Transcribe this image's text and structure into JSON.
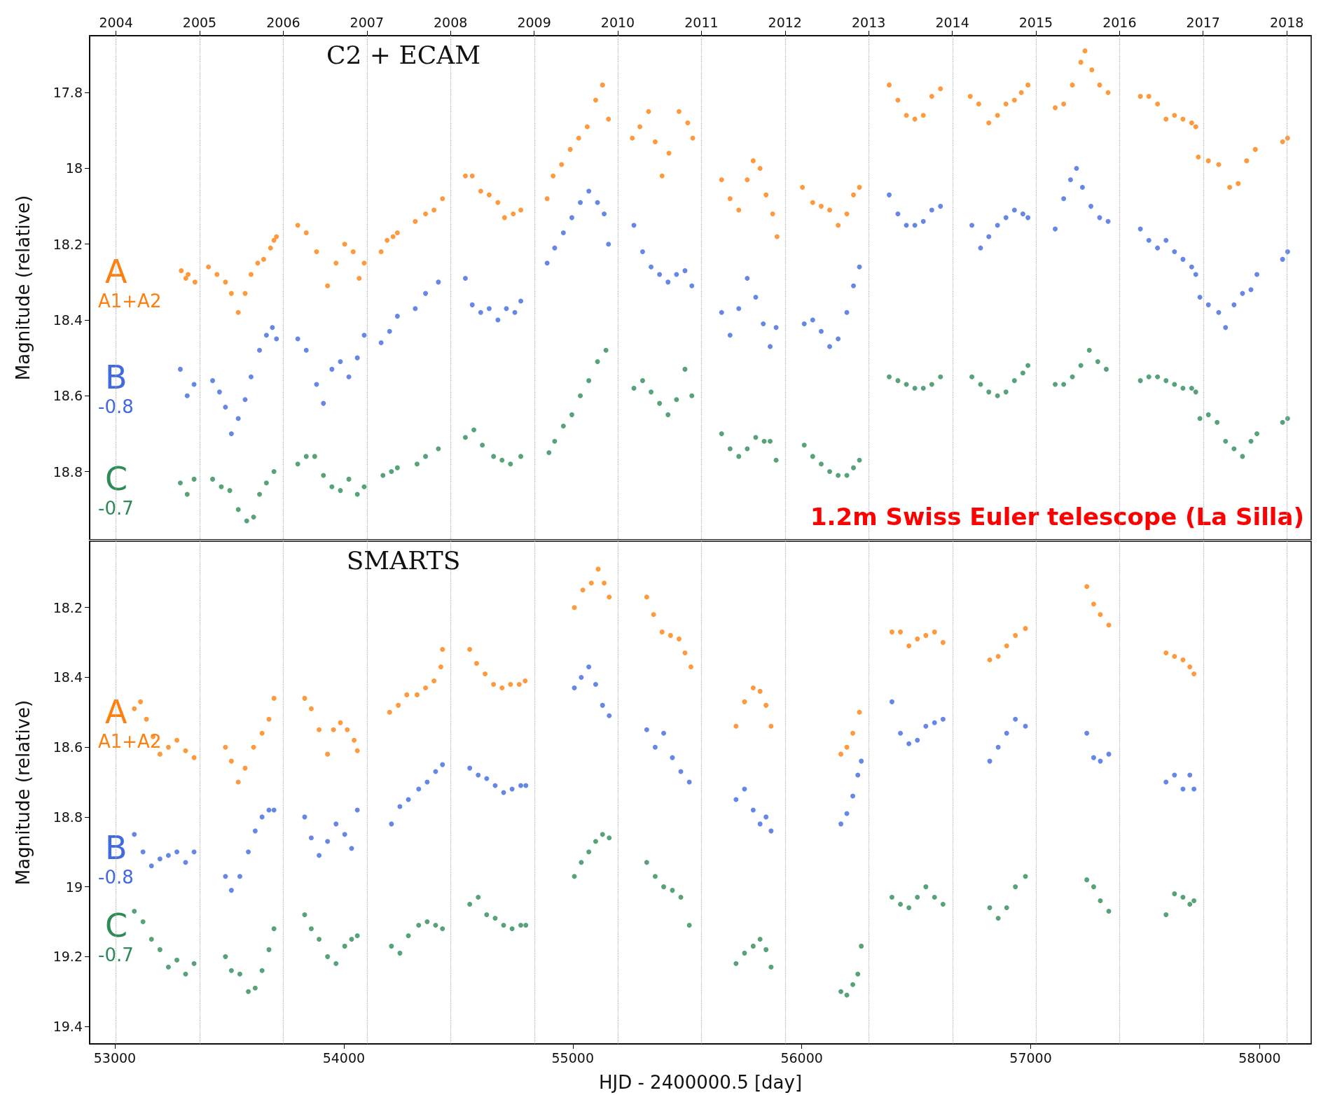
{
  "chart_data": [
    {
      "type": "scatter",
      "title": "C2 + ECAM",
      "ylabel": "Magnitude (relative)",
      "marker": "circle",
      "annotations": [
        "A1+A2",
        "-0.8",
        "-0.7",
        "1.2m Swiss Euler telescope (La Silla)"
      ],
      "xlim": [
        52890,
        58225
      ],
      "ylim": [
        18.98,
        17.65
      ],
      "yticks": [
        17.8,
        18.0,
        18.2,
        18.4,
        18.6,
        18.8
      ],
      "x2lim": [
        2003.685,
        2018.292
      ],
      "x2ticks": [
        2004,
        2005,
        2006,
        2007,
        2008,
        2009,
        2010,
        2011,
        2012,
        2013,
        2014,
        2015,
        2016,
        2017,
        2018
      ],
      "ref_lines": [
        {
          "axis": "x",
          "value": 53005,
          "color": "#b0b0b0",
          "line_style": "dotted"
        },
        {
          "axis": "x",
          "value": 53371,
          "color": "#b0b0b0",
          "line_style": "dotted"
        },
        {
          "axis": "x",
          "value": 53736,
          "color": "#b0b0b0",
          "line_style": "dotted"
        },
        {
          "axis": "x",
          "value": 54101,
          "color": "#b0b0b0",
          "line_style": "dotted"
        },
        {
          "axis": "x",
          "value": 54466,
          "color": "#b0b0b0",
          "line_style": "dotted"
        },
        {
          "axis": "x",
          "value": 54832,
          "color": "#b0b0b0",
          "line_style": "dotted"
        },
        {
          "axis": "x",
          "value": 55197,
          "color": "#b0b0b0",
          "line_style": "dotted"
        },
        {
          "axis": "x",
          "value": 55562,
          "color": "#b0b0b0",
          "line_style": "dotted"
        },
        {
          "axis": "x",
          "value": 55927,
          "color": "#b0b0b0",
          "line_style": "dotted"
        },
        {
          "axis": "x",
          "value": 56293,
          "color": "#b0b0b0",
          "line_style": "dotted"
        },
        {
          "axis": "x",
          "value": 56658,
          "color": "#b0b0b0",
          "line_style": "dotted"
        },
        {
          "axis": "x",
          "value": 57023,
          "color": "#b0b0b0",
          "line_style": "dotted"
        },
        {
          "axis": "x",
          "value": 57388,
          "color": "#b0b0b0",
          "line_style": "dotted"
        },
        {
          "axis": "x",
          "value": 57754,
          "color": "#b0b0b0",
          "line_style": "dotted"
        },
        {
          "axis": "x",
          "value": 58119,
          "color": "#b0b0b0",
          "line_style": "dotted"
        }
      ],
      "series": [
        {
          "name": "A",
          "color": "#ff7f0e",
          "x": [
            53290,
            53310,
            53320,
            53350,
            53409,
            53446,
            53483,
            53509,
            53539,
            53569,
            53595,
            53624,
            53650,
            53680,
            53695,
            53706,
            53799,
            53836,
            53881,
            53929,
            53966,
            54004,
            54041,
            54067,
            54089,
            54163,
            54189,
            54215,
            54234,
            54312,
            54357,
            54394,
            54431,
            54531,
            54561,
            54598,
            54635,
            54673,
            54702,
            54740,
            54773,
            54888,
            54914,
            54951,
            54989,
            55026,
            55063,
            55100,
            55130,
            55156,
            55260,
            55293,
            55331,
            55360,
            55390,
            55420,
            55464,
            55502,
            55524,
            55650,
            55687,
            55725,
            55762,
            55788,
            55818,
            55844,
            55873,
            55892,
            56003,
            56048,
            56085,
            56122,
            56159,
            56197,
            56226,
            56252,
            56382,
            56420,
            56457,
            56494,
            56531,
            56568,
            56606,
            56736,
            56773,
            56817,
            56855,
            56892,
            56929,
            56959,
            56988,
            57107,
            57144,
            57182,
            57219,
            57237,
            57267,
            57301,
            57338,
            57479,
            57516,
            57554,
            57591,
            57628,
            57665,
            57703,
            57721,
            57732,
            57776,
            57821,
            57869,
            57906,
            57943,
            57981,
            58100,
            58122
          ],
          "values": [
            18.27,
            18.29,
            18.28,
            18.3,
            18.26,
            18.28,
            18.3,
            18.33,
            18.38,
            18.33,
            18.28,
            18.25,
            18.24,
            18.21,
            18.19,
            18.18,
            18.15,
            18.17,
            18.22,
            18.31,
            18.25,
            18.2,
            18.22,
            18.29,
            18.25,
            18.22,
            18.19,
            18.18,
            18.17,
            18.14,
            18.12,
            18.11,
            18.08,
            18.02,
            18.02,
            18.06,
            18.07,
            18.09,
            18.13,
            18.12,
            18.11,
            18.08,
            18.02,
            17.99,
            17.95,
            17.92,
            17.89,
            17.82,
            17.78,
            17.87,
            17.92,
            17.89,
            17.85,
            17.93,
            18.02,
            17.96,
            17.85,
            17.88,
            17.92,
            18.03,
            18.08,
            18.11,
            18.03,
            17.98,
            18.0,
            18.07,
            18.12,
            18.18,
            18.05,
            18.09,
            18.1,
            18.11,
            18.15,
            18.12,
            18.07,
            18.05,
            17.78,
            17.82,
            17.86,
            17.87,
            17.86,
            17.81,
            17.79,
            17.81,
            17.83,
            17.88,
            17.86,
            17.83,
            17.82,
            17.8,
            17.78,
            17.84,
            17.83,
            17.78,
            17.72,
            17.69,
            17.74,
            17.78,
            17.8,
            17.81,
            17.81,
            17.83,
            17.87,
            17.86,
            17.87,
            17.88,
            17.89,
            17.97,
            17.98,
            17.99,
            18.05,
            18.04,
            17.98,
            17.95,
            17.93,
            17.92
          ]
        },
        {
          "name": "B",
          "color": "#4169e1",
          "x": [
            53286,
            53316,
            53346,
            53427,
            53457,
            53483,
            53509,
            53539,
            53569,
            53595,
            53632,
            53662,
            53688,
            53706,
            53799,
            53836,
            53881,
            53911,
            53948,
            53985,
            54022,
            54059,
            54089,
            54163,
            54200,
            54234,
            54312,
            54357,
            54413,
            54531,
            54561,
            54598,
            54635,
            54673,
            54710,
            54747,
            54773,
            54888,
            54921,
            54959,
            54996,
            55033,
            55070,
            55108,
            55137,
            55156,
            55267,
            55305,
            55342,
            55379,
            55416,
            55453,
            55490,
            55520,
            55650,
            55687,
            55725,
            55762,
            55799,
            55832,
            55862,
            55888,
            56011,
            56048,
            56085,
            56122,
            56159,
            56197,
            56226,
            56252,
            56382,
            56420,
            56457,
            56494,
            56531,
            56568,
            56606,
            56743,
            56781,
            56817,
            56855,
            56892,
            56929,
            56966,
            56988,
            57107,
            57144,
            57174,
            57200,
            57226,
            57263,
            57301,
            57338,
            57479,
            57516,
            57554,
            57591,
            57628,
            57665,
            57703,
            57721,
            57739,
            57776,
            57821,
            57851,
            57888,
            57925,
            57962,
            57988,
            58100,
            58122
          ],
          "values": [
            18.53,
            18.6,
            18.57,
            18.56,
            18.59,
            18.63,
            18.7,
            18.66,
            18.61,
            18.55,
            18.48,
            18.44,
            18.42,
            18.45,
            18.45,
            18.48,
            18.57,
            18.62,
            18.53,
            18.51,
            18.55,
            18.5,
            18.44,
            18.46,
            18.43,
            18.39,
            18.37,
            18.33,
            18.3,
            18.29,
            18.36,
            18.38,
            18.37,
            18.4,
            18.37,
            18.38,
            18.35,
            18.25,
            18.21,
            18.17,
            18.13,
            18.09,
            18.06,
            18.09,
            18.12,
            18.2,
            18.15,
            18.22,
            18.26,
            18.28,
            18.3,
            18.28,
            18.27,
            18.31,
            18.38,
            18.44,
            18.37,
            18.29,
            18.34,
            18.41,
            18.47,
            18.42,
            18.41,
            18.4,
            18.43,
            18.47,
            18.45,
            18.38,
            18.31,
            18.26,
            18.07,
            18.12,
            18.15,
            18.15,
            18.14,
            18.11,
            18.1,
            18.15,
            18.21,
            18.18,
            18.15,
            18.13,
            18.11,
            18.12,
            18.13,
            18.16,
            18.08,
            18.03,
            18.0,
            18.05,
            18.1,
            18.13,
            18.14,
            18.16,
            18.19,
            18.21,
            18.19,
            18.22,
            18.24,
            18.26,
            18.28,
            18.34,
            18.36,
            18.38,
            18.42,
            18.36,
            18.33,
            18.32,
            18.28,
            18.24,
            18.22
          ]
        },
        {
          "name": "C",
          "color": "#2e8b57",
          "x": [
            53286,
            53316,
            53346,
            53427,
            53465,
            53502,
            53539,
            53576,
            53606,
            53632,
            53662,
            53695,
            53799,
            53836,
            53873,
            53911,
            53948,
            53985,
            54022,
            54059,
            54089,
            54171,
            54208,
            54234,
            54320,
            54357,
            54413,
            54531,
            54568,
            54605,
            54654,
            54691,
            54728,
            54773,
            54896,
            54921,
            54959,
            54996,
            55033,
            55070,
            55108,
            55145,
            55267,
            55305,
            55342,
            55379,
            55416,
            55453,
            55490,
            55520,
            55650,
            55687,
            55725,
            55762,
            55799,
            55836,
            55862,
            55888,
            56011,
            56048,
            56085,
            56122,
            56159,
            56197,
            56226,
            56252,
            56382,
            56420,
            56457,
            56494,
            56531,
            56568,
            56606,
            56743,
            56781,
            56817,
            56855,
            56892,
            56929,
            56966,
            56988,
            57107,
            57144,
            57182,
            57219,
            57256,
            57293,
            57330,
            57479,
            57516,
            57554,
            57591,
            57628,
            57665,
            57703,
            57721,
            57739,
            57776,
            57814,
            57851,
            57888,
            57925,
            57962,
            57988,
            58100,
            58122
          ],
          "values": [
            18.83,
            18.86,
            18.82,
            18.82,
            18.84,
            18.85,
            18.9,
            18.93,
            18.92,
            18.86,
            18.83,
            18.8,
            18.78,
            18.76,
            18.76,
            18.81,
            18.84,
            18.85,
            18.82,
            18.86,
            18.84,
            18.81,
            18.8,
            18.79,
            18.78,
            18.76,
            18.74,
            18.71,
            18.69,
            18.73,
            18.76,
            18.77,
            18.78,
            18.76,
            18.75,
            18.72,
            18.68,
            18.65,
            18.6,
            18.56,
            18.51,
            18.48,
            18.58,
            18.56,
            18.59,
            18.62,
            18.65,
            18.61,
            18.53,
            18.6,
            18.7,
            18.74,
            18.76,
            18.74,
            18.71,
            18.72,
            18.72,
            18.77,
            18.73,
            18.76,
            18.78,
            18.8,
            18.81,
            18.81,
            18.79,
            18.77,
            18.55,
            18.56,
            18.57,
            18.58,
            18.58,
            18.57,
            18.55,
            18.55,
            18.57,
            18.59,
            18.6,
            18.59,
            18.56,
            18.54,
            18.52,
            18.57,
            18.57,
            18.55,
            18.52,
            18.48,
            18.51,
            18.53,
            18.56,
            18.55,
            18.55,
            18.56,
            18.57,
            18.58,
            18.58,
            18.59,
            18.66,
            18.65,
            18.67,
            18.72,
            18.74,
            18.76,
            18.72,
            18.7,
            18.67,
            18.66
          ]
        }
      ]
    },
    {
      "type": "scatter",
      "title": "SMARTS",
      "xlabel": "HJD - 2400000.5 [day]",
      "ylabel": "Magnitude (relative)",
      "marker": "circle",
      "annotations": [
        "A1+A2",
        "-0.8",
        "-0.7"
      ],
      "xlim": [
        52890,
        58225
      ],
      "xticks": [
        53000,
        54000,
        55000,
        56000,
        57000,
        58000
      ],
      "ylim": [
        19.45,
        18.01
      ],
      "yticks": [
        18.2,
        18.4,
        18.6,
        18.8,
        19.0,
        19.2,
        19.4
      ],
      "ref_lines": [
        {
          "axis": "x",
          "value": 53005,
          "color": "#b0b0b0",
          "line_style": "dotted"
        },
        {
          "axis": "x",
          "value": 53371,
          "color": "#b0b0b0",
          "line_style": "dotted"
        },
        {
          "axis": "x",
          "value": 53736,
          "color": "#b0b0b0",
          "line_style": "dotted"
        },
        {
          "axis": "x",
          "value": 54101,
          "color": "#b0b0b0",
          "line_style": "dotted"
        },
        {
          "axis": "x",
          "value": 54466,
          "color": "#b0b0b0",
          "line_style": "dotted"
        },
        {
          "axis": "x",
          "value": 54832,
          "color": "#b0b0b0",
          "line_style": "dotted"
        },
        {
          "axis": "x",
          "value": 55197,
          "color": "#b0b0b0",
          "line_style": "dotted"
        },
        {
          "axis": "x",
          "value": 55562,
          "color": "#b0b0b0",
          "line_style": "dotted"
        },
        {
          "axis": "x",
          "value": 55927,
          "color": "#b0b0b0",
          "line_style": "dotted"
        },
        {
          "axis": "x",
          "value": 56293,
          "color": "#b0b0b0",
          "line_style": "dotted"
        },
        {
          "axis": "x",
          "value": 56658,
          "color": "#b0b0b0",
          "line_style": "dotted"
        },
        {
          "axis": "x",
          "value": 57023,
          "color": "#b0b0b0",
          "line_style": "dotted"
        },
        {
          "axis": "x",
          "value": 57388,
          "color": "#b0b0b0",
          "line_style": "dotted"
        },
        {
          "axis": "x",
          "value": 57754,
          "color": "#b0b0b0",
          "line_style": "dotted"
        },
        {
          "axis": "x",
          "value": 58119,
          "color": "#b0b0b0",
          "line_style": "dotted"
        }
      ],
      "series": [
        {
          "name": "A",
          "color": "#ff7f0e",
          "x": [
            53085,
            53112,
            53138,
            53167,
            53197,
            53234,
            53271,
            53309,
            53346,
            53483,
            53509,
            53539,
            53569,
            53606,
            53643,
            53673,
            53695,
            53829,
            53858,
            53892,
            53929,
            53955,
            53985,
            54015,
            54045,
            54059,
            54200,
            54238,
            54275,
            54320,
            54357,
            54394,
            54424,
            54431,
            54550,
            54580,
            54617,
            54654,
            54691,
            54728,
            54766,
            54792,
            55007,
            55044,
            55081,
            55111,
            55137,
            55159,
            55323,
            55353,
            55390,
            55427,
            55464,
            55490,
            55516,
            55713,
            55750,
            55788,
            55818,
            55844,
            55866,
            56171,
            56197,
            56223,
            56252,
            56394,
            56431,
            56468,
            56505,
            56542,
            56580,
            56617,
            56821,
            56858,
            56895,
            56933,
            56977,
            57245,
            57275,
            57304,
            57341,
            57591,
            57628,
            57665,
            57695,
            57713
          ],
          "values": [
            18.49,
            18.47,
            18.52,
            18.57,
            18.62,
            18.6,
            18.58,
            18.61,
            18.63,
            18.6,
            18.64,
            18.7,
            18.66,
            18.6,
            18.56,
            18.52,
            18.46,
            18.46,
            18.49,
            18.55,
            18.62,
            18.55,
            18.53,
            18.55,
            18.58,
            18.61,
            18.5,
            18.48,
            18.45,
            18.45,
            18.43,
            18.41,
            18.37,
            18.32,
            18.32,
            18.36,
            18.39,
            18.42,
            18.43,
            18.42,
            18.42,
            18.41,
            18.2,
            18.15,
            18.13,
            18.09,
            18.13,
            18.17,
            18.17,
            18.22,
            18.27,
            18.28,
            18.29,
            18.33,
            18.37,
            18.54,
            18.47,
            18.43,
            18.44,
            18.48,
            18.54,
            18.62,
            18.6,
            18.56,
            18.5,
            18.27,
            18.27,
            18.31,
            18.29,
            18.28,
            18.27,
            18.3,
            18.35,
            18.34,
            18.31,
            18.28,
            18.26,
            18.14,
            18.19,
            18.22,
            18.25,
            18.33,
            18.34,
            18.35,
            18.37,
            18.39
          ]
        },
        {
          "name": "B",
          "color": "#4169e1",
          "x": [
            53085,
            53123,
            53160,
            53197,
            53234,
            53271,
            53309,
            53346,
            53483,
            53509,
            53546,
            53583,
            53613,
            53643,
            53673,
            53695,
            53829,
            53858,
            53892,
            53929,
            53966,
            54004,
            54034,
            54059,
            54208,
            54245,
            54282,
            54327,
            54364,
            54401,
            54431,
            54550,
            54587,
            54624,
            54661,
            54698,
            54735,
            54773,
            54795,
            55007,
            55037,
            55070,
            55100,
            55130,
            55159,
            55323,
            55360,
            55397,
            55435,
            55472,
            55509,
            55713,
            55750,
            55788,
            55818,
            55844,
            55866,
            56171,
            56197,
            56223,
            56245,
            56260,
            56394,
            56431,
            56468,
            56505,
            56542,
            56580,
            56617,
            56821,
            56858,
            56895,
            56933,
            56977,
            57245,
            57275,
            57304,
            57341,
            57591,
            57628,
            57665,
            57695,
            57713
          ],
          "values": [
            18.85,
            18.9,
            18.94,
            18.92,
            18.91,
            18.9,
            18.93,
            18.9,
            18.97,
            19.01,
            18.97,
            18.9,
            18.84,
            18.8,
            18.78,
            18.78,
            18.8,
            18.86,
            18.91,
            18.87,
            18.82,
            18.85,
            18.89,
            18.78,
            18.82,
            18.77,
            18.75,
            18.72,
            18.7,
            18.67,
            18.65,
            18.66,
            18.68,
            18.69,
            18.71,
            18.73,
            18.72,
            18.71,
            18.71,
            18.43,
            18.4,
            18.37,
            18.42,
            18.48,
            18.51,
            18.55,
            18.6,
            18.56,
            18.63,
            18.67,
            18.7,
            18.75,
            18.72,
            18.78,
            18.82,
            18.8,
            18.84,
            18.82,
            18.79,
            18.74,
            18.68,
            18.64,
            18.47,
            18.56,
            18.59,
            18.58,
            18.54,
            18.53,
            18.52,
            18.64,
            18.6,
            18.56,
            18.52,
            18.54,
            18.56,
            18.63,
            18.64,
            18.62,
            18.7,
            18.68,
            18.72,
            18.68,
            18.72
          ]
        },
        {
          "name": "C",
          "color": "#2e8b57",
          "x": [
            53085,
            53123,
            53160,
            53197,
            53234,
            53271,
            53309,
            53346,
            53483,
            53509,
            53546,
            53583,
            53613,
            53643,
            53673,
            53695,
            53829,
            53858,
            53892,
            53929,
            53966,
            54004,
            54034,
            54059,
            54208,
            54245,
            54282,
            54327,
            54364,
            54401,
            54431,
            54550,
            54587,
            54624,
            54661,
            54698,
            54735,
            54773,
            54795,
            55007,
            55037,
            55070,
            55100,
            55130,
            55159,
            55323,
            55360,
            55397,
            55435,
            55472,
            55509,
            55713,
            55750,
            55788,
            55818,
            55844,
            55866,
            56171,
            56197,
            56223,
            56245,
            56260,
            56394,
            56431,
            56468,
            56505,
            56542,
            56580,
            56617,
            56821,
            56858,
            56895,
            56933,
            56977,
            57245,
            57275,
            57304,
            57341,
            57591,
            57628,
            57665,
            57695,
            57713
          ],
          "values": [
            19.07,
            19.1,
            19.15,
            19.18,
            19.23,
            19.21,
            19.25,
            19.22,
            19.2,
            19.24,
            19.25,
            19.3,
            19.29,
            19.24,
            19.18,
            19.12,
            19.08,
            19.12,
            19.15,
            19.2,
            19.22,
            19.17,
            19.15,
            19.14,
            19.17,
            19.19,
            19.14,
            19.11,
            19.1,
            19.11,
            19.12,
            19.05,
            19.03,
            19.08,
            19.09,
            19.11,
            19.12,
            19.11,
            19.11,
            18.97,
            18.93,
            18.9,
            18.87,
            18.85,
            18.86,
            18.93,
            18.97,
            19.0,
            19.01,
            19.03,
            19.11,
            19.22,
            19.19,
            19.17,
            19.15,
            19.18,
            19.23,
            19.3,
            19.31,
            19.28,
            19.25,
            19.17,
            19.03,
            19.05,
            19.06,
            19.03,
            19.0,
            19.03,
            19.05,
            19.06,
            19.09,
            19.06,
            19.0,
            18.97,
            18.98,
            19.0,
            19.04,
            19.07,
            19.08,
            19.02,
            19.03,
            19.05,
            19.04
          ]
        }
      ]
    }
  ]
}
